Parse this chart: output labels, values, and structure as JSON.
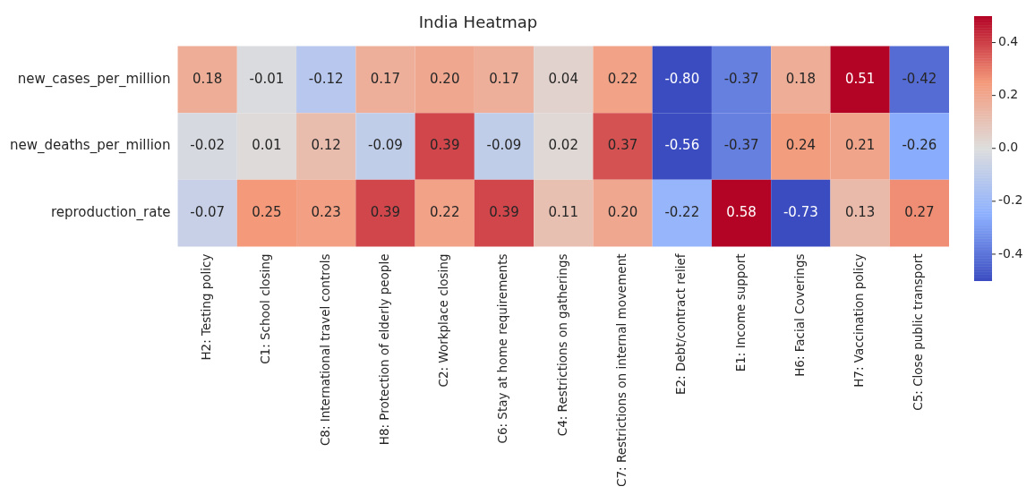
{
  "chart_data": {
    "type": "heatmap",
    "title": "India Heatmap",
    "categories": [
      "H2: Testing policy",
      "C1: School closing",
      "C8: International travel controls",
      "H8: Protection of elderly people",
      "C2: Workplace closing",
      "C6: Stay at home requirements",
      "C4: Restrictions on gatherings",
      "C7: Restrictions on internal movement",
      "E2: Debt/contract relief",
      "E1: Income support",
      "H6: Facial Coverings",
      "H7: Vaccination policy",
      "C5: Close public transport"
    ],
    "y_categories": [
      "new_cases_per_million",
      "new_deaths_per_million",
      "reproduction_rate"
    ],
    "cells": [
      [
        0.18,
        -0.01,
        -0.12,
        0.17,
        0.2,
        0.17,
        0.04,
        0.22,
        -0.8,
        -0.37,
        0.18,
        0.51,
        -0.42
      ],
      [
        -0.02,
        0.01,
        0.12,
        -0.09,
        0.39,
        -0.09,
        0.02,
        0.37,
        -0.56,
        -0.37,
        0.24,
        0.21,
        -0.26
      ],
      [
        -0.07,
        0.25,
        0.23,
        0.39,
        0.22,
        0.39,
        0.11,
        0.2,
        -0.22,
        0.58,
        -0.73,
        0.13,
        0.27
      ]
    ],
    "cell_labels": [
      [
        "0.18",
        "-0.01",
        "-0.12",
        "0.17",
        "0.20",
        "0.17",
        "0.04",
        "0.22",
        "-0.80",
        "-0.37",
        "0.18",
        "0.51",
        "-0.42"
      ],
      [
        "-0.02",
        "0.01",
        "0.12",
        "-0.09",
        "0.39",
        "-0.09",
        "0.02",
        "0.37",
        "-0.56",
        "-0.37",
        "0.24",
        "0.21",
        "-0.26"
      ],
      [
        "-0.07",
        "0.25",
        "0.23",
        "0.39",
        "0.22",
        "0.39",
        "0.11",
        "0.20",
        "-0.22",
        "0.58",
        "-0.73",
        "0.13",
        "0.27"
      ]
    ],
    "clim": [
      -0.5,
      0.5
    ],
    "cticks": [
      -0.4,
      -0.2,
      {
        "value": 0,
        "label": "0.0"
      },
      0.2,
      0.4
    ]
  }
}
